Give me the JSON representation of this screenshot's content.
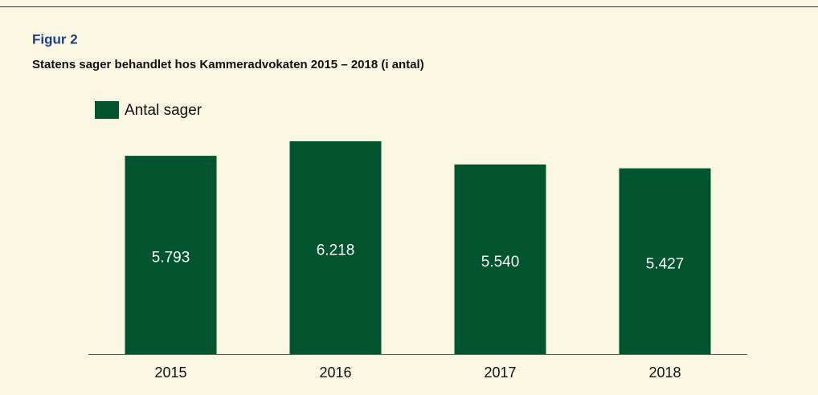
{
  "chart_data": {
    "type": "bar",
    "title": "Figur 2",
    "subtitle": "Statens sager behandlet hos Kammeradvokaten 2015 – 2018 (i antal)",
    "categories": [
      "2015",
      "2016",
      "2017",
      "2018"
    ],
    "series": [
      {
        "name": "Antal sager",
        "color": "#00552e",
        "values": [
          5793,
          6218,
          5540,
          5427
        ],
        "value_labels": [
          "5.793",
          "6.218",
          "5.540",
          "5.427"
        ]
      }
    ],
    "ylim": [
      0,
      7000
    ]
  }
}
